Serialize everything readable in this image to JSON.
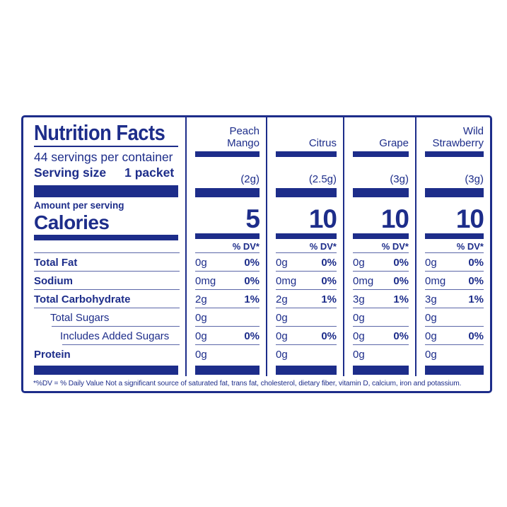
{
  "colors": {
    "navy": "#1d2d8a",
    "hairline": "#5b66a8",
    "background": "#ffffff"
  },
  "label": {
    "title": "Nutrition Facts",
    "servings_per_container": "44 servings per container",
    "serving_size_label": "Serving size",
    "serving_size_value": "1 packet",
    "amount_per_serving": "Amount per serving",
    "calories_label": "Calories",
    "dv_header": "% DV*",
    "footnote": "*%DV = % Daily Value Not a significant source of saturated fat, trans fat, cholesterol, dietary fiber, vitamin D, calcium, iron and potassium.",
    "columns": [
      {
        "name": "Peach\nMango",
        "serving_weight": "(2g)",
        "calories": "5"
      },
      {
        "name": "Citrus",
        "serving_weight": "(2.5g)",
        "calories": "10"
      },
      {
        "name": "Grape",
        "serving_weight": "(3g)",
        "calories": "10"
      },
      {
        "name": "Wild\nStrawberry",
        "serving_weight": "(3g)",
        "calories": "10"
      }
    ],
    "rows": [
      {
        "label": "Total Fat",
        "values": [
          {
            "amount": "0g",
            "dv": "0%"
          },
          {
            "amount": "0g",
            "dv": "0%"
          },
          {
            "amount": "0g",
            "dv": "0%"
          },
          {
            "amount": "0g",
            "dv": "0%"
          }
        ]
      },
      {
        "label": "Sodium",
        "values": [
          {
            "amount": "0mg",
            "dv": "0%"
          },
          {
            "amount": "0mg",
            "dv": "0%"
          },
          {
            "amount": "0mg",
            "dv": "0%"
          },
          {
            "amount": "0mg",
            "dv": "0%"
          }
        ]
      },
      {
        "label": "Total Carbohydrate",
        "values": [
          {
            "amount": "2g",
            "dv": "1%"
          },
          {
            "amount": "2g",
            "dv": "1%"
          },
          {
            "amount": "3g",
            "dv": "1%"
          },
          {
            "amount": "3g",
            "dv": "1%"
          }
        ]
      },
      {
        "label": "Total Sugars",
        "values": [
          {
            "amount": "0g",
            "dv": ""
          },
          {
            "amount": "0g",
            "dv": ""
          },
          {
            "amount": "0g",
            "dv": ""
          },
          {
            "amount": "0g",
            "dv": ""
          }
        ]
      },
      {
        "label": "Includes Added Sugars",
        "values": [
          {
            "amount": "0g",
            "dv": "0%"
          },
          {
            "amount": "0g",
            "dv": "0%"
          },
          {
            "amount": "0g",
            "dv": "0%"
          },
          {
            "amount": "0g",
            "dv": "0%"
          }
        ]
      },
      {
        "label": "Protein",
        "values": [
          {
            "amount": "0g",
            "dv": ""
          },
          {
            "amount": "0g",
            "dv": ""
          },
          {
            "amount": "0g",
            "dv": ""
          },
          {
            "amount": "0g",
            "dv": ""
          }
        ]
      }
    ]
  }
}
